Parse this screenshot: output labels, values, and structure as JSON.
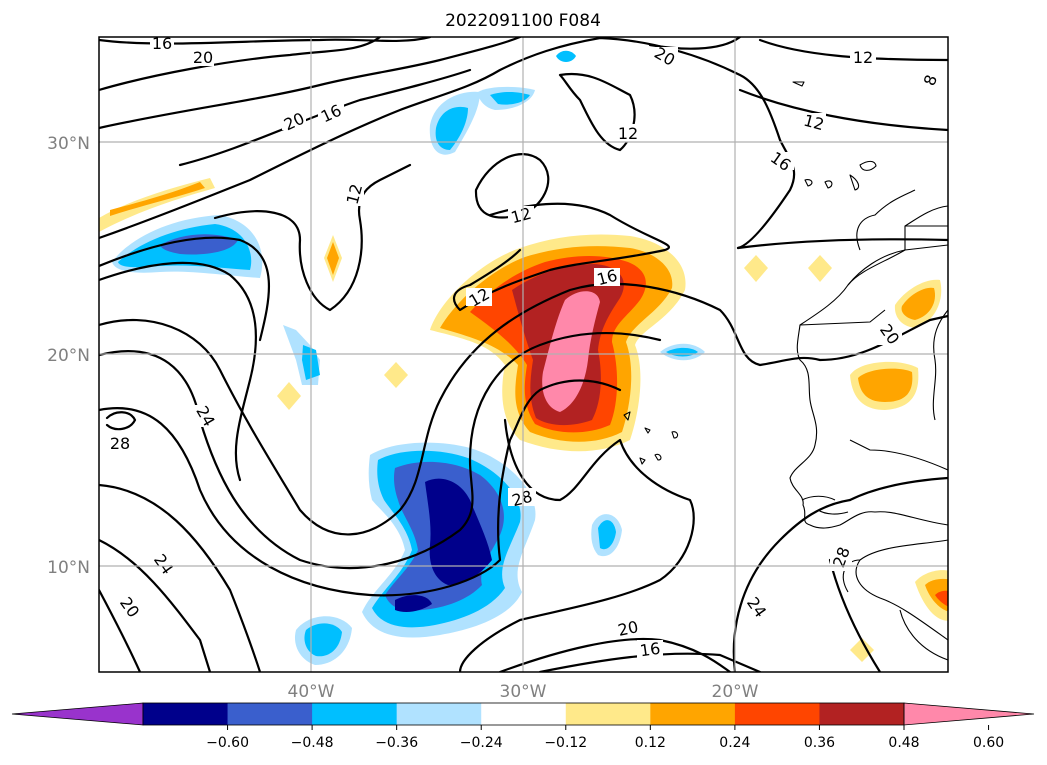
{
  "title": "2022091100 F084",
  "lat_labels": [
    "30°N",
    "20°N",
    "10°N"
  ],
  "lon_labels": [
    "40°W",
    "30°W",
    "20°W"
  ],
  "colorbar": {
    "ticks": [
      "−0.60",
      "−0.48",
      "−0.36",
      "−0.24",
      "−0.12",
      "0.12",
      "0.24",
      "0.36",
      "0.48",
      "0.60"
    ],
    "colors": [
      "#9933cc",
      "#00008b",
      "#3a5fcd",
      "#00bfff",
      "#b0e2ff",
      "#ffffff",
      "#ffe98a",
      "#ffa500",
      "#ff4500",
      "#b22222",
      "#ff88aa"
    ]
  },
  "contour_labels": [
    "16",
    "20",
    "20",
    "16",
    "12",
    "20",
    "12",
    "12",
    "12",
    "16",
    "20",
    "16",
    "12",
    "24",
    "28",
    "28",
    "24",
    "20",
    "20",
    "16",
    "24",
    "28",
    "20",
    "8"
  ]
}
